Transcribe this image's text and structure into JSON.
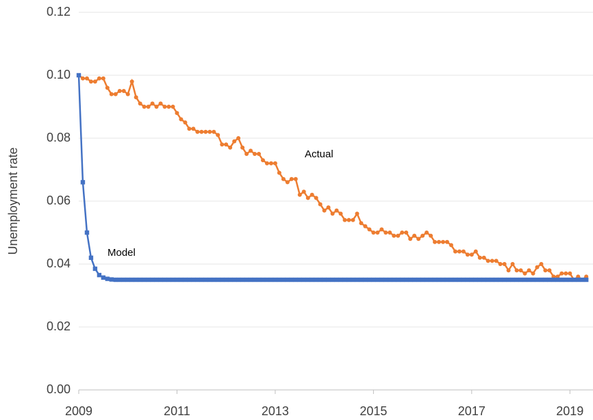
{
  "chart_data": {
    "type": "line",
    "ylabel": "Unemployment rate",
    "annotations": [
      "Actual",
      "Model"
    ],
    "xlim": [
      2009,
      2019.47
    ],
    "xticks": [
      2009,
      2011,
      2013,
      2015,
      2017,
      2019
    ],
    "ylim": [
      0,
      0.12
    ],
    "yticks": [
      {
        "value": 0,
        "label": "0.00"
      },
      {
        "value": 0.02,
        "label": "0.02"
      },
      {
        "value": 0.04,
        "label": "0.04"
      },
      {
        "value": 0.06,
        "label": "0.06"
      },
      {
        "value": 0.08,
        "label": "0.08"
      },
      {
        "value": 0.1,
        "label": "0.10"
      },
      {
        "value": 0.12,
        "label": "0.12"
      }
    ],
    "grid": true,
    "x": [
      2009,
      2009.083,
      2009.167,
      2009.25,
      2009.333,
      2009.417,
      2009.5,
      2009.583,
      2009.667,
      2009.75,
      2009.833,
      2009.917,
      2010,
      2010.083,
      2010.167,
      2010.25,
      2010.333,
      2010.417,
      2010.5,
      2010.583,
      2010.667,
      2010.75,
      2010.833,
      2010.917,
      2011,
      2011.083,
      2011.167,
      2011.25,
      2011.333,
      2011.417,
      2011.5,
      2011.583,
      2011.667,
      2011.75,
      2011.833,
      2011.917,
      2012,
      2012.083,
      2012.167,
      2012.25,
      2012.333,
      2012.417,
      2012.5,
      2012.583,
      2012.667,
      2012.75,
      2012.833,
      2012.917,
      2013,
      2013.083,
      2013.167,
      2013.25,
      2013.333,
      2013.417,
      2013.5,
      2013.583,
      2013.667,
      2013.75,
      2013.833,
      2013.917,
      2014,
      2014.083,
      2014.167,
      2014.25,
      2014.333,
      2014.417,
      2014.5,
      2014.583,
      2014.667,
      2014.75,
      2014.833,
      2014.917,
      2015,
      2015.083,
      2015.167,
      2015.25,
      2015.333,
      2015.417,
      2015.5,
      2015.583,
      2015.667,
      2015.75,
      2015.833,
      2015.917,
      2016,
      2016.083,
      2016.167,
      2016.25,
      2016.333,
      2016.417,
      2016.5,
      2016.583,
      2016.667,
      2016.75,
      2016.833,
      2016.917,
      2017,
      2017.083,
      2017.167,
      2017.25,
      2017.333,
      2017.417,
      2017.5,
      2017.583,
      2017.667,
      2017.75,
      2017.833,
      2017.917,
      2018,
      2018.083,
      2018.167,
      2018.25,
      2018.333,
      2018.417,
      2018.5,
      2018.583,
      2018.667,
      2018.75,
      2018.833,
      2018.917,
      2019,
      2019.083,
      2019.167,
      2019.25,
      2019.333
    ],
    "series": [
      {
        "name": "Actual",
        "color": "#ED7D31",
        "marker": "circle",
        "values": [
          0.1,
          0.099,
          0.099,
          0.098,
          0.098,
          0.099,
          0.099,
          0.096,
          0.094,
          0.094,
          0.095,
          0.095,
          0.094,
          0.098,
          0.093,
          0.091,
          0.09,
          0.09,
          0.091,
          0.09,
          0.091,
          0.09,
          0.09,
          0.09,
          0.088,
          0.086,
          0.085,
          0.083,
          0.083,
          0.082,
          0.082,
          0.082,
          0.082,
          0.082,
          0.081,
          0.078,
          0.078,
          0.077,
          0.079,
          0.08,
          0.077,
          0.075,
          0.076,
          0.075,
          0.075,
          0.073,
          0.072,
          0.072,
          0.072,
          0.069,
          0.067,
          0.066,
          0.067,
          0.067,
          0.062,
          0.063,
          0.061,
          0.062,
          0.061,
          0.059,
          0.057,
          0.058,
          0.056,
          0.057,
          0.056,
          0.054,
          0.054,
          0.054,
          0.056,
          0.053,
          0.052,
          0.051,
          0.05,
          0.05,
          0.051,
          0.05,
          0.05,
          0.049,
          0.049,
          0.05,
          0.05,
          0.048,
          0.049,
          0.048,
          0.049,
          0.05,
          0.049,
          0.047,
          0.047,
          0.047,
          0.047,
          0.046,
          0.044,
          0.044,
          0.044,
          0.043,
          0.043,
          0.044,
          0.042,
          0.042,
          0.041,
          0.041,
          0.041,
          0.04,
          0.04,
          0.038,
          0.04,
          0.038,
          0.038,
          0.037,
          0.038,
          0.037,
          0.039,
          0.04,
          0.038,
          0.038,
          0.036,
          0.036,
          0.037,
          0.037,
          0.037,
          0.035,
          0.036,
          0.035,
          0.036
        ]
      },
      {
        "name": "Model",
        "color": "#4472C4",
        "marker": "square",
        "values": [
          0.1,
          0.066,
          0.05,
          0.042,
          0.0385,
          0.0365,
          0.0357,
          0.0353,
          0.0351,
          0.035,
          0.035,
          0.035,
          0.035,
          0.035,
          0.035,
          0.035,
          0.035,
          0.035,
          0.035,
          0.035,
          0.035,
          0.035,
          0.035,
          0.035,
          0.035,
          0.035,
          0.035,
          0.035,
          0.035,
          0.035,
          0.035,
          0.035,
          0.035,
          0.035,
          0.035,
          0.035,
          0.035,
          0.035,
          0.035,
          0.035,
          0.035,
          0.035,
          0.035,
          0.035,
          0.035,
          0.035,
          0.035,
          0.035,
          0.035,
          0.035,
          0.035,
          0.035,
          0.035,
          0.035,
          0.035,
          0.035,
          0.035,
          0.035,
          0.035,
          0.035,
          0.035,
          0.035,
          0.035,
          0.035,
          0.035,
          0.035,
          0.035,
          0.035,
          0.035,
          0.035,
          0.035,
          0.035,
          0.035,
          0.035,
          0.035,
          0.035,
          0.035,
          0.035,
          0.035,
          0.035,
          0.035,
          0.035,
          0.035,
          0.035,
          0.035,
          0.035,
          0.035,
          0.035,
          0.035,
          0.035,
          0.035,
          0.035,
          0.035,
          0.035,
          0.035,
          0.035,
          0.035,
          0.035,
          0.035,
          0.035,
          0.035,
          0.035,
          0.035,
          0.035,
          0.035,
          0.035,
          0.035,
          0.035,
          0.035,
          0.035,
          0.035,
          0.035,
          0.035,
          0.035,
          0.035,
          0.035,
          0.035,
          0.035,
          0.035,
          0.035,
          0.035,
          0.035,
          0.035,
          0.035,
          0.035
        ]
      }
    ]
  }
}
